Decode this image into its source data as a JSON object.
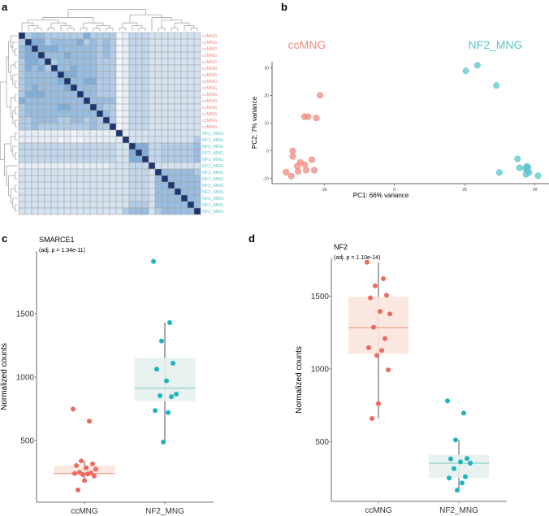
{
  "panel_labels": {
    "a": "a",
    "b": "b",
    "c": "c",
    "d": "d"
  },
  "colors": {
    "ccMNG": "#ee6a5f",
    "NF2_MNG": "#1fb3bd",
    "ccMNG_light": "#f08a80",
    "NF2_MNG_light": "#5cc6c9",
    "cc_box": "#fbe7de",
    "nf_box": "#e7f1ef",
    "cc_median": "#f4a08f",
    "nf_median": "#8fd3c6"
  },
  "chart_data": [
    {
      "type": "heatmap",
      "row_labels": [
        "ccMNG",
        "ccMNG",
        "ccMNG",
        "ccMNG",
        "ccMNG",
        "ccMNG",
        "ccMNG",
        "ccMNG",
        "ccMNG",
        "ccMNG",
        "ccMNG",
        "ccMNG",
        "ccMNG",
        "ccMNG",
        "ccMNG",
        "NF2_MNG",
        "NF2_MNG",
        "NF2_MNG",
        "NF2_MNG",
        "NF2_MNG",
        "NF2_MNG",
        "NF2_MNG",
        "NF2_MNG",
        "NF2_MNG",
        "NF2_MNG",
        "NF2_MNG",
        "NF2_MNG",
        "NF2_MNG"
      ],
      "value_scale": "similarity level 0 (low) to 9 (identical)",
      "matrix_levels": [
        "9455444444644440133322222222",
        "4966455556454540133322222222",
        "5696665555554540133322222222",
        "5669555655554540133322222222",
        "4665945555554440133322222222",
        "4656495565554440133322222222",
        "4555559665554440133322222222",
        "4555556955664440133322222222",
        "4565555695554440133322222222",
        "4666555559554440133322222222",
        "6555555555955550133322222222",
        "4555556655595440133322222222",
        "4555555555559540133322222222",
        "4455554455454940133322222222",
        "4454444444454490133322222222",
        "1111111101111119122222222222",
        "1111110100111111922222222224",
        "3333333333333332296633444445",
        "3333333333333332269633444445",
        "3333333333333332266933444445",
        "1111111111111122233392222222",
        "2222222222222222233329555554",
        "2222222222222222233325955555",
        "2222222222222222233325595555",
        "2222222222222222233325559555",
        "2222222222222222233325555955",
        "2222222222222222244425555595",
        "2222222222222222455524555559"
      ]
    },
    {
      "type": "scatter",
      "xlabel": "PC1: 66% variance",
      "ylabel": "PC2: 7% variance",
      "xticks": [
        -25,
        0,
        25,
        50
      ],
      "yticks": [
        -10,
        0,
        10,
        20,
        30
      ],
      "xlim": [
        -43,
        55
      ],
      "ylim": [
        -12,
        33
      ],
      "series": [
        {
          "name": "ccMNG",
          "points": [
            [
              -26.5,
              20
            ],
            [
              -32,
              12.3
            ],
            [
              -30.7,
              12.3
            ],
            [
              -27.8,
              11.8
            ],
            [
              -36.2,
              -0.1
            ],
            [
              -36.2,
              -2.1
            ],
            [
              -33.5,
              -4.2
            ],
            [
              -34.6,
              -5.6
            ],
            [
              -31.9,
              -5.1
            ],
            [
              -29.4,
              -3.3
            ],
            [
              -38.6,
              -7.8
            ],
            [
              -36.7,
              -9.2
            ],
            [
              -34.3,
              -7.5
            ],
            [
              -31.4,
              -7.1
            ],
            [
              -28.5,
              -7.1
            ]
          ]
        },
        {
          "name": "NF2_MNG",
          "points": [
            [
              25.4,
              28.9
            ],
            [
              29.5,
              30.9
            ],
            [
              36.3,
              23.6
            ],
            [
              37.3,
              -7.9
            ],
            [
              43.8,
              -3.0
            ],
            [
              44.5,
              -6.2
            ],
            [
              46.5,
              -6.4
            ],
            [
              47.1,
              -5.7
            ],
            [
              47.2,
              -7.0
            ],
            [
              47.9,
              -7.9
            ],
            [
              46.8,
              -8.6
            ],
            [
              51.1,
              -9.1
            ],
            [
              47.5,
              -6.0
            ]
          ]
        }
      ]
    },
    {
      "type": "box",
      "title": "SMARCE1",
      "subtitle": "(adj. p = 1.34e-11)",
      "ylabel": "Normalized counts",
      "yticks": [
        500,
        1000,
        1500
      ],
      "ylim": [
        15,
        2000
      ],
      "categories": [
        "ccMNG",
        "NF2_MNG"
      ],
      "groups": [
        {
          "name": "ccMNG",
          "values": [
            748,
            652,
            339,
            316,
            303,
            286,
            275,
            249,
            245,
            241,
            237,
            232,
            220,
            185,
            111
          ],
          "q1": 235,
          "median": 241,
          "q3": 303,
          "whisker_low": 185,
          "whisker_high": 339
        },
        {
          "name": "NF2_MNG",
          "values": [
            1910,
            1429,
            1284,
            1109,
            1062,
            970,
            866,
            853,
            846,
            736,
            721,
            488
          ],
          "q1": 810,
          "median": 913,
          "q3": 1151,
          "whisker_low": 488,
          "whisker_high": 1429
        }
      ]
    },
    {
      "type": "box",
      "title": "NF2",
      "subtitle": "(adj. p = 1.10e-14)",
      "ylabel": "Normalized counts",
      "yticks": [
        500,
        1000,
        1500
      ],
      "ylim": [
        87,
        1760
      ],
      "categories": [
        "ccMNG",
        "NF2_MNG"
      ],
      "groups": [
        {
          "name": "ccMNG",
          "values": [
            1733,
            1620,
            1571,
            1506,
            1489,
            1395,
            1378,
            1287,
            1209,
            1146,
            1127,
            1092,
            993,
            762,
            659
          ],
          "q1": 1102,
          "median": 1283,
          "q3": 1496,
          "whisker_low": 659,
          "whisker_high": 1733
        },
        {
          "name": "NF2_MNG",
          "values": [
            780,
            696,
            512,
            384,
            382,
            361,
            352,
            315,
            259,
            250,
            216,
            166
          ],
          "q1": 252,
          "median": 352,
          "q3": 410,
          "whisker_low": 166,
          "whisker_high": 512
        }
      ]
    }
  ]
}
